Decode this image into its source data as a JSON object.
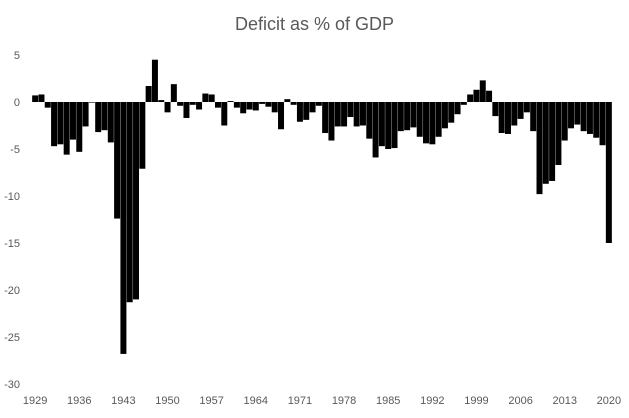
{
  "chart_data": {
    "type": "bar",
    "title": "Deficit as % of GDP",
    "xlabel": "",
    "ylabel": "",
    "ylim": [
      -30,
      5
    ],
    "yticks": [
      5,
      0,
      -5,
      -10,
      -15,
      -20,
      -25,
      -30
    ],
    "x_tick_labels": [
      "1929",
      "1936",
      "1943",
      "1950",
      "1957",
      "1964",
      "1971",
      "1978",
      "1985",
      "1992",
      "1999",
      "2006",
      "2013",
      "2020"
    ],
    "bar_color": "#000000",
    "grid": false,
    "legend": "none",
    "categories": [
      1929,
      1930,
      1931,
      1932,
      1933,
      1934,
      1935,
      1936,
      1937,
      1938,
      1939,
      1940,
      1941,
      1942,
      1943,
      1944,
      1945,
      1946,
      1947,
      1948,
      1949,
      1950,
      1951,
      1952,
      1953,
      1954,
      1955,
      1956,
      1957,
      1958,
      1959,
      1960,
      1961,
      1962,
      1963,
      1964,
      1965,
      1966,
      1967,
      1968,
      1969,
      1970,
      1971,
      1972,
      1973,
      1974,
      1975,
      1976,
      1977,
      1978,
      1979,
      1980,
      1981,
      1982,
      1983,
      1984,
      1985,
      1986,
      1987,
      1988,
      1989,
      1990,
      1991,
      1992,
      1993,
      1994,
      1995,
      1996,
      1997,
      1998,
      1999,
      2000,
      2001,
      2002,
      2003,
      2004,
      2005,
      2006,
      2007,
      2008,
      2009,
      2010,
      2011,
      2012,
      2013,
      2014,
      2015,
      2016,
      2017,
      2018,
      2019,
      2020
    ],
    "values": [
      0.7,
      0.8,
      -0.6,
      -4.7,
      -4.5,
      -5.6,
      -4.0,
      -5.3,
      -2.6,
      0.0,
      -3.2,
      -3.0,
      -4.3,
      -12.4,
      -26.8,
      -21.3,
      -21.0,
      -7.1,
      1.7,
      4.5,
      0.2,
      -1.1,
      1.9,
      -0.4,
      -1.7,
      -0.3,
      -0.8,
      0.9,
      0.8,
      -0.6,
      -2.5,
      0.1,
      -0.6,
      -1.2,
      -0.8,
      -0.9,
      -0.2,
      -0.5,
      -1.1,
      -2.9,
      0.3,
      -0.3,
      -2.1,
      -1.9,
      -1.1,
      -0.4,
      -3.3,
      -4.1,
      -2.6,
      -2.6,
      -1.6,
      -2.6,
      -2.5,
      -3.9,
      -5.9,
      -4.7,
      -5.0,
      -4.9,
      -3.1,
      -3.0,
      -2.7,
      -3.7,
      -4.4,
      -4.5,
      -3.7,
      -2.8,
      -2.2,
      -1.3,
      -0.3,
      0.8,
      1.3,
      2.3,
      1.2,
      -1.5,
      -3.3,
      -3.4,
      -2.5,
      -1.8,
      -1.1,
      -3.1,
      -9.8,
      -8.7,
      -8.4,
      -6.7,
      -4.1,
      -2.8,
      -2.4,
      -3.1,
      -3.4,
      -3.8,
      -4.6,
      -15.0
    ]
  }
}
